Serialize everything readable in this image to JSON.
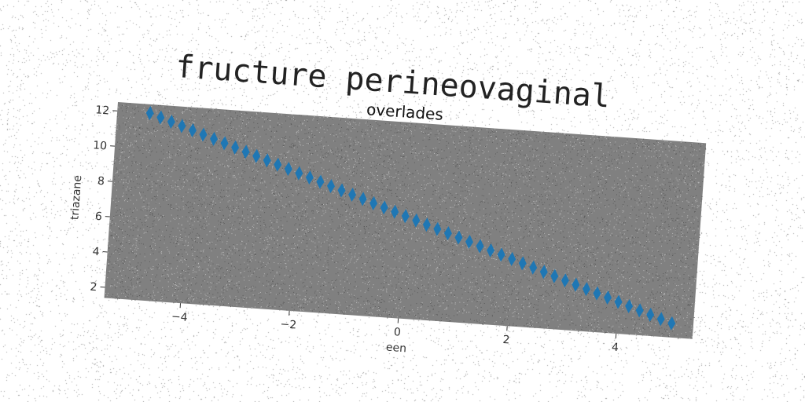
{
  "page": {
    "title": "fructure perineovaginal"
  },
  "chart_data": {
    "type": "scatter",
    "title": "overlades",
    "xlabel": "een",
    "ylabel": "triazane",
    "xlim": [
      -5.4,
      5.4
    ],
    "ylim": [
      1.4,
      12.5
    ],
    "xticks": [
      -4,
      -2,
      0,
      2,
      4
    ],
    "xtick_labels": [
      "−4",
      "−2",
      "0",
      "2",
      "4"
    ],
    "yticks": [
      2,
      4,
      6,
      8,
      10,
      12
    ],
    "ytick_labels": [
      "2",
      "4",
      "6",
      "8",
      "10",
      "12"
    ],
    "grid": false,
    "marker": "diamond",
    "colors": {
      "marker": "#1f77b4",
      "plot_background": "#808080"
    },
    "series": [
      {
        "x": [
          -4.8,
          -4.6,
          -4.4,
          -4.2,
          -4.0,
          -3.8,
          -3.6,
          -3.4,
          -3.2,
          -3.0,
          -2.8,
          -2.6,
          -2.4,
          -2.2,
          -2.0,
          -1.8,
          -1.6,
          -1.4,
          -1.2,
          -1.0,
          -0.8,
          -0.6,
          -0.4,
          -0.2,
          0.0,
          0.2,
          0.4,
          0.6,
          0.8,
          1.0,
          1.2,
          1.4,
          1.6,
          1.8,
          2.0,
          2.2,
          2.4,
          2.6,
          2.8,
          3.0,
          3.2,
          3.4,
          3.6,
          3.8,
          4.0,
          4.2,
          4.4,
          4.6,
          4.8,
          5.0
        ],
        "y": [
          12.0,
          11.8,
          11.6,
          11.4,
          11.2,
          11.0,
          10.8,
          10.6,
          10.4,
          10.2,
          10.0,
          9.8,
          9.6,
          9.4,
          9.2,
          9.0,
          8.8,
          8.6,
          8.4,
          8.2,
          8.0,
          7.8,
          7.6,
          7.4,
          7.2,
          7.0,
          6.8,
          6.6,
          6.4,
          6.2,
          6.0,
          5.8,
          5.6,
          5.4,
          5.2,
          5.0,
          4.8,
          4.6,
          4.4,
          4.2,
          4.0,
          3.8,
          3.6,
          3.4,
          3.2,
          3.0,
          2.8,
          2.6,
          2.4,
          2.2
        ]
      }
    ]
  }
}
